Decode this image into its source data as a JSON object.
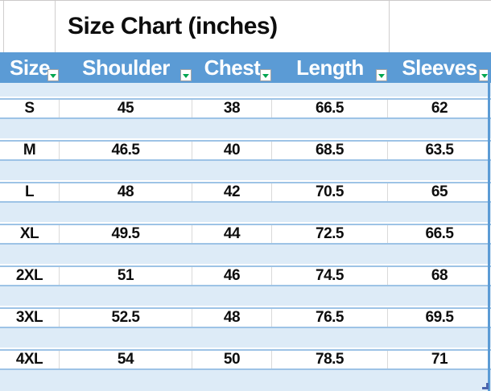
{
  "window": {
    "title": "Size Chart (inches)"
  },
  "table": {
    "columns": [
      {
        "label": "Size"
      },
      {
        "label": "Shoulder"
      },
      {
        "label": "Chest"
      },
      {
        "label": "Length"
      },
      {
        "label": "Sleeves"
      }
    ],
    "rows": [
      {
        "cells": [
          "S",
          "45",
          "38",
          "66.5",
          "62"
        ]
      },
      {
        "cells": [
          "M",
          "46.5",
          "40",
          "68.5",
          "63.5"
        ]
      },
      {
        "cells": [
          "L",
          "48",
          "42",
          "70.5",
          "65"
        ]
      },
      {
        "cells": [
          "XL",
          "49.5",
          "44",
          "72.5",
          "66.5"
        ]
      },
      {
        "cells": [
          "2XL",
          "51",
          "46",
          "74.5",
          "68"
        ]
      },
      {
        "cells": [
          "3XL",
          "52.5",
          "48",
          "76.5",
          "69.5"
        ]
      },
      {
        "cells": [
          "4XL",
          "54",
          "50",
          "78.5",
          "71"
        ]
      }
    ]
  },
  "icons": {
    "filter_dropdown": "filter-dropdown-icon",
    "resize_handle": "table-resize-handle-icon"
  },
  "colors": {
    "header_bg": "#5b9bd5",
    "band_bg": "#ddebf7",
    "row_border_blue": "#9dc3e6",
    "grid_gray": "#d9d9d9",
    "filter_arrow_green": "#00a650",
    "table_edge_blue": "#5b9bd5",
    "resize_handle_blue": "#4a64ad",
    "text": "#0d0d0d"
  }
}
